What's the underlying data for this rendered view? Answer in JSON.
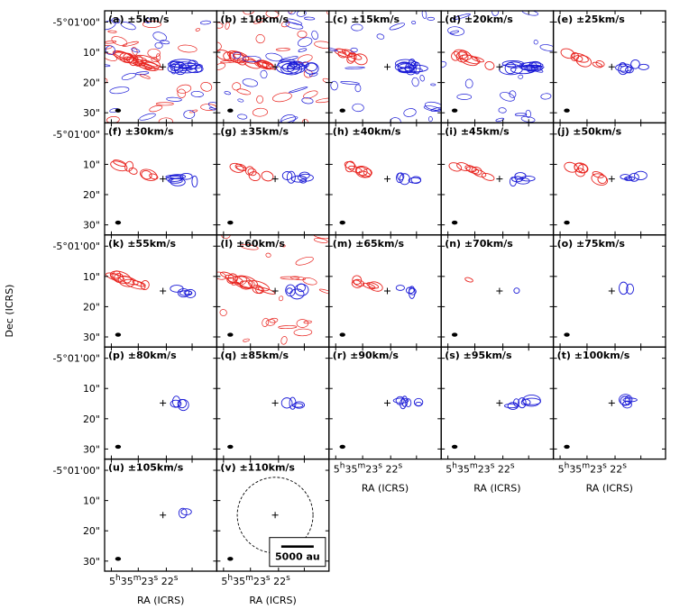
{
  "chart_data": {
    "type": "contour",
    "title": "",
    "ylabel": "Dec (ICRS)",
    "xlabel": "RA (ICRS)",
    "y_ticks": [
      "-5°01'00\"",
      "10\"",
      "20\"",
      "30\""
    ],
    "y_tick_values_arcsec": [
      0,
      10,
      20,
      30
    ],
    "x_tick_parts": [
      {
        "num": "5",
        "sup": "h"
      },
      {
        "num": "35",
        "sup": "m"
      },
      {
        "num": "23",
        "sup": "s"
      },
      {
        "num": " 22",
        "sup": "s"
      }
    ],
    "scalebar_label": "5000 au",
    "colors": {
      "red_lobe": "#e8231e",
      "blue_lobe": "#1a1ad6",
      "frame": "#000000"
    },
    "panels": [
      {
        "label": "(a) ±5km/s",
        "red": 1.0,
        "blue": 1.0
      },
      {
        "label": "(b) ±10km/s",
        "red": 1.0,
        "blue": 1.0
      },
      {
        "label": "(c) ±15km/s",
        "red": 0.6,
        "blue": 0.9
      },
      {
        "label": "(d) ±20km/s",
        "red": 0.6,
        "blue": 0.9
      },
      {
        "label": "(e) ±25km/s",
        "red": 0.5,
        "blue": 0.6
      },
      {
        "label": "(f) ±30km/s",
        "red": 0.5,
        "blue": 0.6
      },
      {
        "label": "(g) ±35km/s",
        "red": 0.5,
        "blue": 0.5
      },
      {
        "label": "(h) ±40km/s",
        "red": 0.5,
        "blue": 0.4
      },
      {
        "label": "(i) ±45km/s",
        "red": 0.5,
        "blue": 0.4
      },
      {
        "label": "(j) ±50km/s",
        "red": 0.6,
        "blue": 0.4
      },
      {
        "label": "(k) ±55km/s",
        "red": 0.7,
        "blue": 0.4
      },
      {
        "label": "(l) ±60km/s",
        "red": 0.8,
        "blue": 0.4
      },
      {
        "label": "(m) ±65km/s",
        "red": 0.4,
        "blue": 0.3
      },
      {
        "label": "(n) ±70km/s",
        "red": 0.1,
        "blue": 0.1
      },
      {
        "label": "(o) ±75km/s",
        "red": 0.0,
        "blue": 0.2
      },
      {
        "label": "(p) ±80km/s",
        "red": 0.0,
        "blue": 0.3
      },
      {
        "label": "(q) ±85km/s",
        "red": 0.0,
        "blue": 0.3
      },
      {
        "label": "(r) ±90km/s",
        "red": 0.0,
        "blue": 0.6
      },
      {
        "label": "(s) ±95km/s",
        "red": 0.0,
        "blue": 0.6
      },
      {
        "label": "(t) ±100km/s",
        "red": 0.0,
        "blue": 0.4
      },
      {
        "label": "(u) ±105km/s",
        "red": 0.0,
        "blue": 0.2
      },
      {
        "label": "(v) ±110km/s",
        "red": 0.0,
        "blue": 0.0
      }
    ]
  }
}
